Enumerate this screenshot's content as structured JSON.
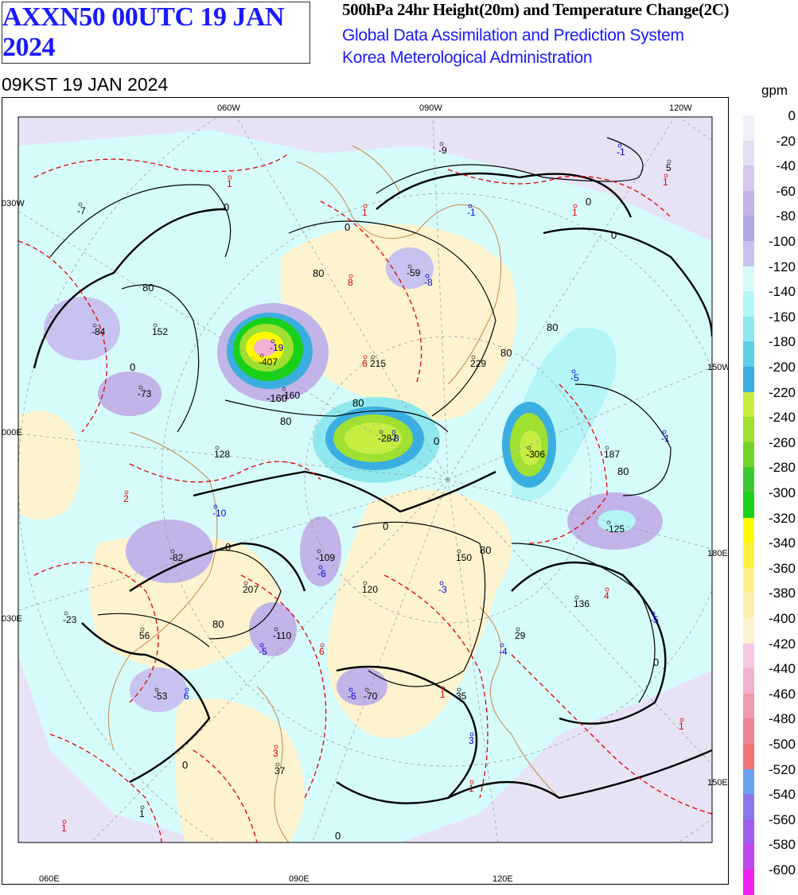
{
  "header": {
    "chart_id": "AXXN50 00UTC 19 JAN 2024",
    "product_title": "500hPa 24hr Height(20m) and Temperature Change(2C)",
    "org_line1": "Global Data Assimilation and Prediction System",
    "org_line2": "Korea Meterological Administration",
    "valid_time": "09KST 19 JAN 2024"
  },
  "legend": {
    "unit": "gpm",
    "levels": [
      {
        "label": "0",
        "color": "#f3eef9"
      },
      {
        "label": "-20",
        "color": "#e6def3"
      },
      {
        "label": "-40",
        "color": "#d4c8ee"
      },
      {
        "label": "-60",
        "color": "#c2b3e8"
      },
      {
        "label": "-80",
        "color": "#b4a5e3"
      },
      {
        "label": "-100",
        "color": "#c8c2f0"
      },
      {
        "label": "-120",
        "color": "#d6fbfb"
      },
      {
        "label": "-140",
        "color": "#b4f5f5"
      },
      {
        "label": "-160",
        "color": "#8ee8ee"
      },
      {
        "label": "-180",
        "color": "#5fcfe8"
      },
      {
        "label": "-200",
        "color": "#3aaee0"
      },
      {
        "label": "-220",
        "color": "#c6ee42"
      },
      {
        "label": "-240",
        "color": "#9fe030"
      },
      {
        "label": "-260",
        "color": "#6fd628"
      },
      {
        "label": "-280",
        "color": "#3cc830"
      },
      {
        "label": "-300",
        "color": "#18d018"
      },
      {
        "label": "-320",
        "color": "#fffa00"
      },
      {
        "label": "-340",
        "color": "#fff040"
      },
      {
        "label": "-360",
        "color": "#fff08a"
      },
      {
        "label": "-380",
        "color": "#fbeeb0"
      },
      {
        "label": "-400",
        "color": "#fdf3cf"
      },
      {
        "label": "-420",
        "color": "#f6c8e6"
      },
      {
        "label": "-440",
        "color": "#f3b2cf"
      },
      {
        "label": "-460",
        "color": "#f09aaa"
      },
      {
        "label": "-480",
        "color": "#ee8496"
      },
      {
        "label": "-500",
        "color": "#f27474"
      },
      {
        "label": "-520",
        "color": "#6aa2f2"
      },
      {
        "label": "-540",
        "color": "#8c78ee"
      },
      {
        "label": "-560",
        "color": "#a05ef0"
      },
      {
        "label": "-580",
        "color": "#c048ee"
      },
      {
        "label": "-600",
        "color": "#ee22ee"
      }
    ]
  },
  "map": {
    "lon_labels_top": [
      "060W",
      "090W",
      "120W"
    ],
    "lon_labels_left": [
      "030W",
      "000E",
      "030E",
      "060E"
    ],
    "lon_labels_right": [
      "150W",
      "180E",
      "150E"
    ],
    "lon_labels_bottom": [
      "060E",
      "090E",
      "120E"
    ],
    "contour_labels": [
      "0",
      "80",
      "-160"
    ],
    "values": [
      {
        "text": "-9",
        "color": "black"
      },
      {
        "text": "5",
        "color": "black"
      },
      {
        "text": "-1",
        "color": "blue"
      },
      {
        "text": "1",
        "color": "red"
      },
      {
        "text": "1",
        "color": "red"
      },
      {
        "text": "-7",
        "color": "black"
      },
      {
        "text": "-1",
        "color": "blue"
      },
      {
        "text": "1",
        "color": "red"
      },
      {
        "text": "1",
        "color": "red"
      },
      {
        "text": "-59",
        "color": "black"
      },
      {
        "text": "-8",
        "color": "blue"
      },
      {
        "text": "8",
        "color": "red"
      },
      {
        "text": "-84",
        "color": "black"
      },
      {
        "text": "152",
        "color": "black"
      },
      {
        "text": "-407",
        "color": "black"
      },
      {
        "text": "-19",
        "color": "blue"
      },
      {
        "text": "215",
        "color": "black"
      },
      {
        "text": "6",
        "color": "red"
      },
      {
        "text": "229",
        "color": "black"
      },
      {
        "text": "-73",
        "color": "black"
      },
      {
        "text": "-160",
        "color": "black"
      },
      {
        "text": "-5",
        "color": "blue"
      },
      {
        "text": "-287",
        "color": "black"
      },
      {
        "text": "-8",
        "color": "blue"
      },
      {
        "text": "-306",
        "color": "black"
      },
      {
        "text": "187",
        "color": "black"
      },
      {
        "text": "-1",
        "color": "blue"
      },
      {
        "text": "128",
        "color": "black"
      },
      {
        "text": "2",
        "color": "red"
      },
      {
        "text": "-10",
        "color": "blue"
      },
      {
        "text": "-125",
        "color": "black"
      },
      {
        "text": "-82",
        "color": "black"
      },
      {
        "text": "-109",
        "color": "black"
      },
      {
        "text": "150",
        "color": "black"
      },
      {
        "text": "207",
        "color": "black"
      },
      {
        "text": "-6",
        "color": "blue"
      },
      {
        "text": "120",
        "color": "black"
      },
      {
        "text": "-3",
        "color": "blue"
      },
      {
        "text": "136",
        "color": "black"
      },
      {
        "text": "4",
        "color": "red"
      },
      {
        "text": "-5",
        "color": "blue"
      },
      {
        "text": "-23",
        "color": "black"
      },
      {
        "text": "56",
        "color": "black"
      },
      {
        "text": "-110",
        "color": "black"
      },
      {
        "text": "-5",
        "color": "blue"
      },
      {
        "text": "6",
        "color": "red"
      },
      {
        "text": "29",
        "color": "black"
      },
      {
        "text": "-4",
        "color": "blue"
      },
      {
        "text": "-53",
        "color": "black"
      },
      {
        "text": "6",
        "color": "blue"
      },
      {
        "text": "-6",
        "color": "blue"
      },
      {
        "text": "-70",
        "color": "black"
      },
      {
        "text": "1",
        "color": "red"
      },
      {
        "text": "35",
        "color": "black"
      },
      {
        "text": "3",
        "color": "blue"
      },
      {
        "text": "1",
        "color": "red"
      },
      {
        "text": "3",
        "color": "red"
      },
      {
        "text": "37",
        "color": "black"
      },
      {
        "text": "1",
        "color": "red"
      },
      {
        "text": "1",
        "color": "black"
      },
      {
        "text": "1",
        "color": "red"
      }
    ]
  }
}
